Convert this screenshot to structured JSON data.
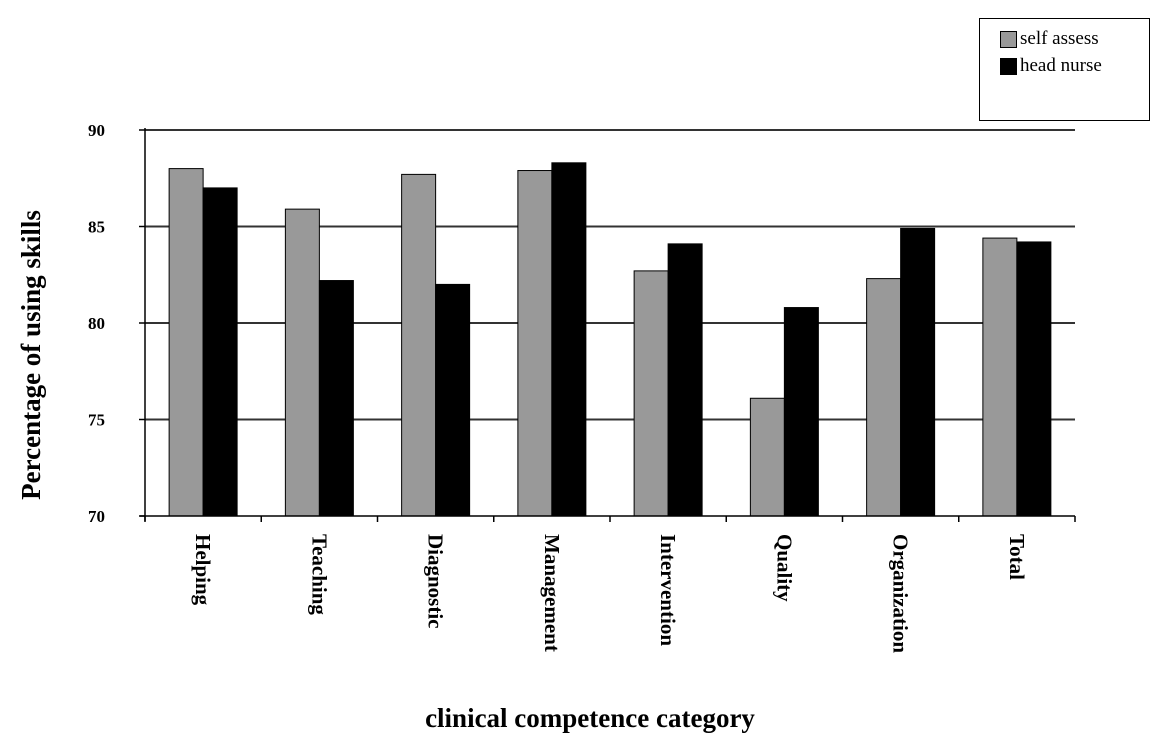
{
  "chart_data": {
    "type": "bar",
    "title": "",
    "xlabel": "clinical competence category",
    "ylabel": "Percentage of using skills",
    "ylim": [
      70,
      90
    ],
    "yticks": [
      70,
      75,
      80,
      85,
      90
    ],
    "grid": true,
    "legend_position": "top-right",
    "categories": [
      "Helping",
      "Teaching",
      "Diagnostic",
      "Management",
      "Intervention",
      "Quality",
      "Organization",
      "Total"
    ],
    "series": [
      {
        "name": "self assess",
        "color": "#999999",
        "values": [
          88.0,
          85.9,
          87.7,
          87.9,
          82.7,
          76.1,
          82.3,
          84.4
        ]
      },
      {
        "name": "head nurse",
        "color": "#000000",
        "values": [
          87.0,
          82.2,
          82.0,
          88.3,
          84.1,
          80.8,
          84.9,
          84.2
        ]
      }
    ]
  }
}
